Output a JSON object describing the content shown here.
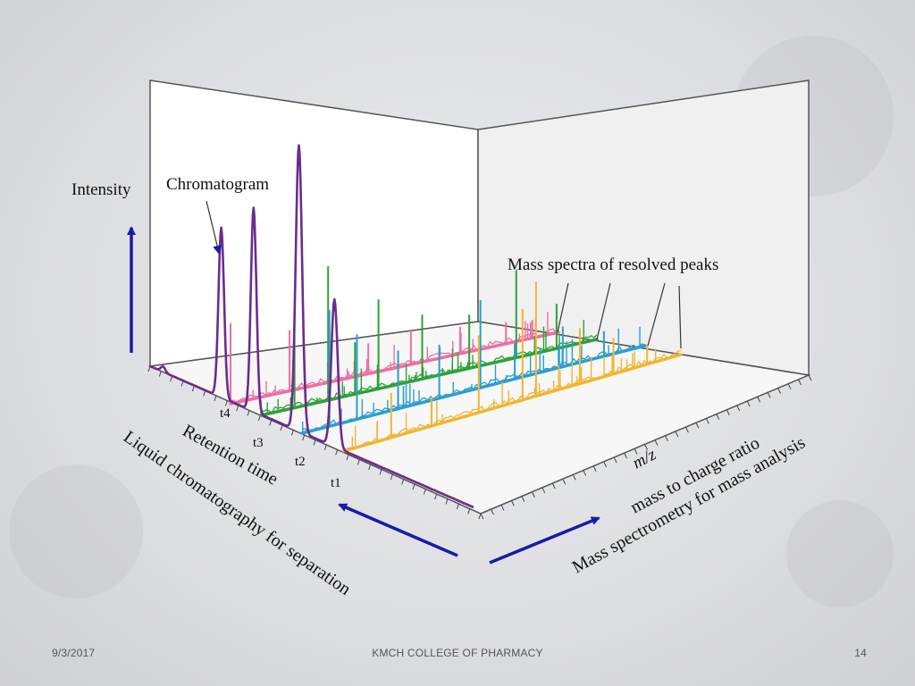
{
  "slide": {
    "footer": {
      "date": "9/3/2017",
      "institution": "KMCH COLLEGE OF PHARMACY",
      "page_number": "14"
    }
  },
  "diagram": {
    "labels": {
      "intensity": "Intensity",
      "chromatogram": "Chromatogram",
      "mass_spectra": "Mass spectra of resolved peaks",
      "retention_time": "Retention time",
      "lc_separation": "Liquid chromatography for separation",
      "mz": "m/z",
      "mass_to_charge": "mass to charge ratio",
      "ms_analysis": "Mass spectrometry for mass analysis"
    },
    "time_ticks": [
      "t4",
      "t3",
      "t2",
      "t1"
    ],
    "spectra": [
      {
        "label": "t4",
        "color": "#ec6fa3"
      },
      {
        "label": "t3",
        "color": "#2fa13a"
      },
      {
        "label": "t2",
        "color": "#2a9fd0"
      },
      {
        "label": "t1",
        "color": "#f2b530"
      }
    ],
    "chromatogram_color": "#6b2c8f",
    "arrow_color": "#1a1aa8"
  }
}
